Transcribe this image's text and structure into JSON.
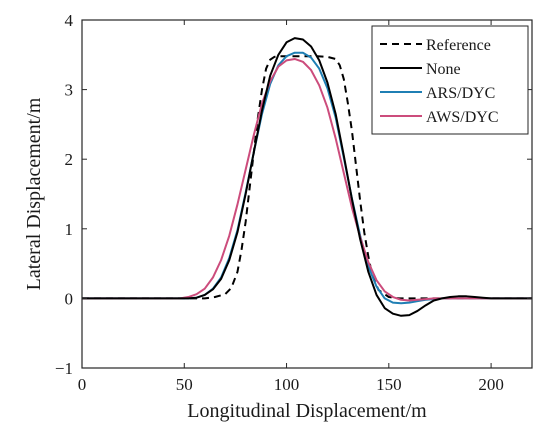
{
  "chart_data": {
    "type": "line",
    "title": "",
    "xlabel": "Longitudinal Displacement/m",
    "ylabel": "Lateral Displacement/m",
    "xlim": [
      0,
      220
    ],
    "ylim": [
      -1,
      4
    ],
    "xticks": [
      0,
      50,
      100,
      150,
      200
    ],
    "yticks": [
      -1,
      0,
      1,
      2,
      3,
      4
    ],
    "xtick_labels": [
      "0",
      "50",
      "100",
      "150",
      "200"
    ],
    "ytick_labels": [
      "−1",
      "0",
      "1",
      "2",
      "3",
      "4"
    ],
    "grid": false,
    "legend_position": "top-right",
    "series": [
      {
        "name": "Reference",
        "color": "#000000",
        "style": "dashed",
        "x": [
          0,
          60,
          65,
          70,
          73,
          76,
          78,
          80,
          82,
          84,
          86,
          88,
          90,
          92,
          94,
          97,
          100,
          105,
          110,
          115,
          120,
          124,
          126,
          128,
          130,
          132,
          134,
          136,
          138,
          140,
          142,
          145,
          150,
          155,
          220
        ],
        "y": [
          0,
          0,
          0.02,
          0.06,
          0.15,
          0.38,
          0.7,
          1.1,
          1.6,
          2.1,
          2.6,
          3.0,
          3.3,
          3.43,
          3.47,
          3.48,
          3.48,
          3.48,
          3.48,
          3.48,
          3.47,
          3.44,
          3.35,
          3.15,
          2.8,
          2.4,
          1.9,
          1.4,
          0.95,
          0.6,
          0.32,
          0.12,
          0.02,
          0,
          0
        ]
      },
      {
        "name": "None",
        "color": "#000000",
        "style": "solid",
        "x": [
          0,
          52,
          56,
          60,
          64,
          68,
          72,
          76,
          80,
          84,
          88,
          92,
          96,
          100,
          104,
          108,
          112,
          116,
          120,
          124,
          128,
          132,
          136,
          140,
          144,
          148,
          152,
          156,
          160,
          164,
          168,
          172,
          176,
          180,
          184,
          188,
          192,
          196,
          200,
          220
        ],
        "y": [
          0,
          0,
          0.01,
          0.05,
          0.13,
          0.28,
          0.55,
          0.95,
          1.5,
          2.1,
          2.7,
          3.2,
          3.5,
          3.68,
          3.74,
          3.72,
          3.62,
          3.42,
          3.1,
          2.65,
          2.05,
          1.42,
          0.85,
          0.38,
          0.05,
          -0.14,
          -0.22,
          -0.25,
          -0.24,
          -0.18,
          -0.1,
          -0.03,
          0.0,
          0.02,
          0.03,
          0.03,
          0.02,
          0.01,
          0,
          0
        ]
      },
      {
        "name": "ARS/DYC",
        "color": "#1f7fb4",
        "style": "solid",
        "x": [
          0,
          52,
          56,
          60,
          64,
          68,
          72,
          76,
          80,
          84,
          88,
          92,
          96,
          100,
          104,
          108,
          112,
          116,
          120,
          124,
          128,
          132,
          136,
          140,
          144,
          148,
          152,
          156,
          160,
          164,
          168,
          172,
          176,
          180,
          220
        ],
        "y": [
          0,
          0,
          0.01,
          0.05,
          0.14,
          0.3,
          0.58,
          0.98,
          1.52,
          2.1,
          2.65,
          3.08,
          3.35,
          3.48,
          3.53,
          3.53,
          3.46,
          3.3,
          3.02,
          2.6,
          2.02,
          1.43,
          0.9,
          0.46,
          0.17,
          0.0,
          -0.06,
          -0.07,
          -0.06,
          -0.04,
          -0.02,
          -0.01,
          0,
          0,
          0
        ]
      },
      {
        "name": "AWS/DYC",
        "color": "#cc4c7c",
        "style": "solid",
        "x": [
          0,
          48,
          52,
          56,
          60,
          64,
          68,
          72,
          76,
          80,
          84,
          88,
          92,
          96,
          100,
          104,
          108,
          112,
          116,
          120,
          124,
          128,
          132,
          136,
          140,
          144,
          148,
          152,
          156,
          160,
          164,
          168,
          172,
          176,
          220
        ],
        "y": [
          0,
          0,
          0.02,
          0.06,
          0.14,
          0.3,
          0.55,
          0.9,
          1.35,
          1.85,
          2.35,
          2.8,
          3.12,
          3.33,
          3.42,
          3.44,
          3.4,
          3.28,
          3.06,
          2.74,
          2.3,
          1.8,
          1.3,
          0.88,
          0.52,
          0.26,
          0.1,
          0.02,
          -0.02,
          -0.03,
          -0.02,
          -0.01,
          0,
          0,
          0
        ]
      }
    ]
  }
}
